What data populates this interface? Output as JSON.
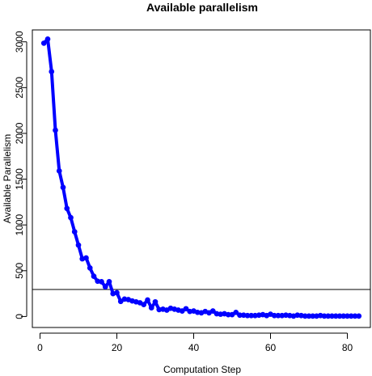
{
  "chart_data": {
    "type": "line",
    "title": "Available parallelism",
    "xlabel": "Computation Step",
    "ylabel": "Available Parallelism",
    "ylabel_color": "#0000ff",
    "series_color": "#0000ff",
    "reference_line": {
      "y": 295,
      "color": "#000000"
    },
    "xlim": [
      -2,
      86
    ],
    "ylim": [
      -120,
      3130
    ],
    "xticks": [
      0,
      20,
      40,
      60,
      80
    ],
    "yticks": [
      0,
      500,
      1000,
      1500,
      2000,
      2500,
      3000
    ],
    "series": [
      {
        "x": [
          1,
          2,
          3,
          4,
          5,
          6,
          7,
          8,
          9,
          10,
          11,
          12,
          13,
          14,
          15,
          16,
          17,
          18,
          19,
          20,
          21,
          22,
          23,
          24,
          25,
          26,
          27,
          28,
          29,
          30,
          31,
          32,
          33,
          34,
          35,
          36,
          37,
          38,
          39,
          40,
          41,
          42,
          43,
          44,
          45,
          46,
          47,
          48,
          49,
          50,
          51,
          52,
          53,
          54,
          55,
          56,
          57,
          58,
          59,
          60,
          61,
          62,
          63,
          64,
          65,
          66,
          67,
          68,
          69,
          70,
          71,
          72,
          73,
          74,
          75,
          76,
          77,
          78,
          79,
          80,
          81,
          82,
          83
        ],
        "values": [
          2985,
          3030,
          2675,
          2035,
          1590,
          1410,
          1180,
          1080,
          925,
          780,
          630,
          640,
          530,
          440,
          385,
          380,
          325,
          380,
          250,
          260,
          165,
          190,
          185,
          170,
          160,
          150,
          130,
          180,
          95,
          160,
          75,
          80,
          70,
          90,
          80,
          70,
          60,
          85,
          55,
          60,
          45,
          40,
          55,
          40,
          60,
          30,
          25,
          30,
          20,
          20,
          45,
          15,
          15,
          10,
          10,
          10,
          15,
          20,
          10,
          25,
          10,
          10,
          10,
          15,
          10,
          5,
          15,
          10,
          5,
          5,
          5,
          5,
          10,
          5,
          5,
          5,
          5,
          5,
          5,
          5,
          5,
          5,
          5
        ]
      }
    ]
  }
}
